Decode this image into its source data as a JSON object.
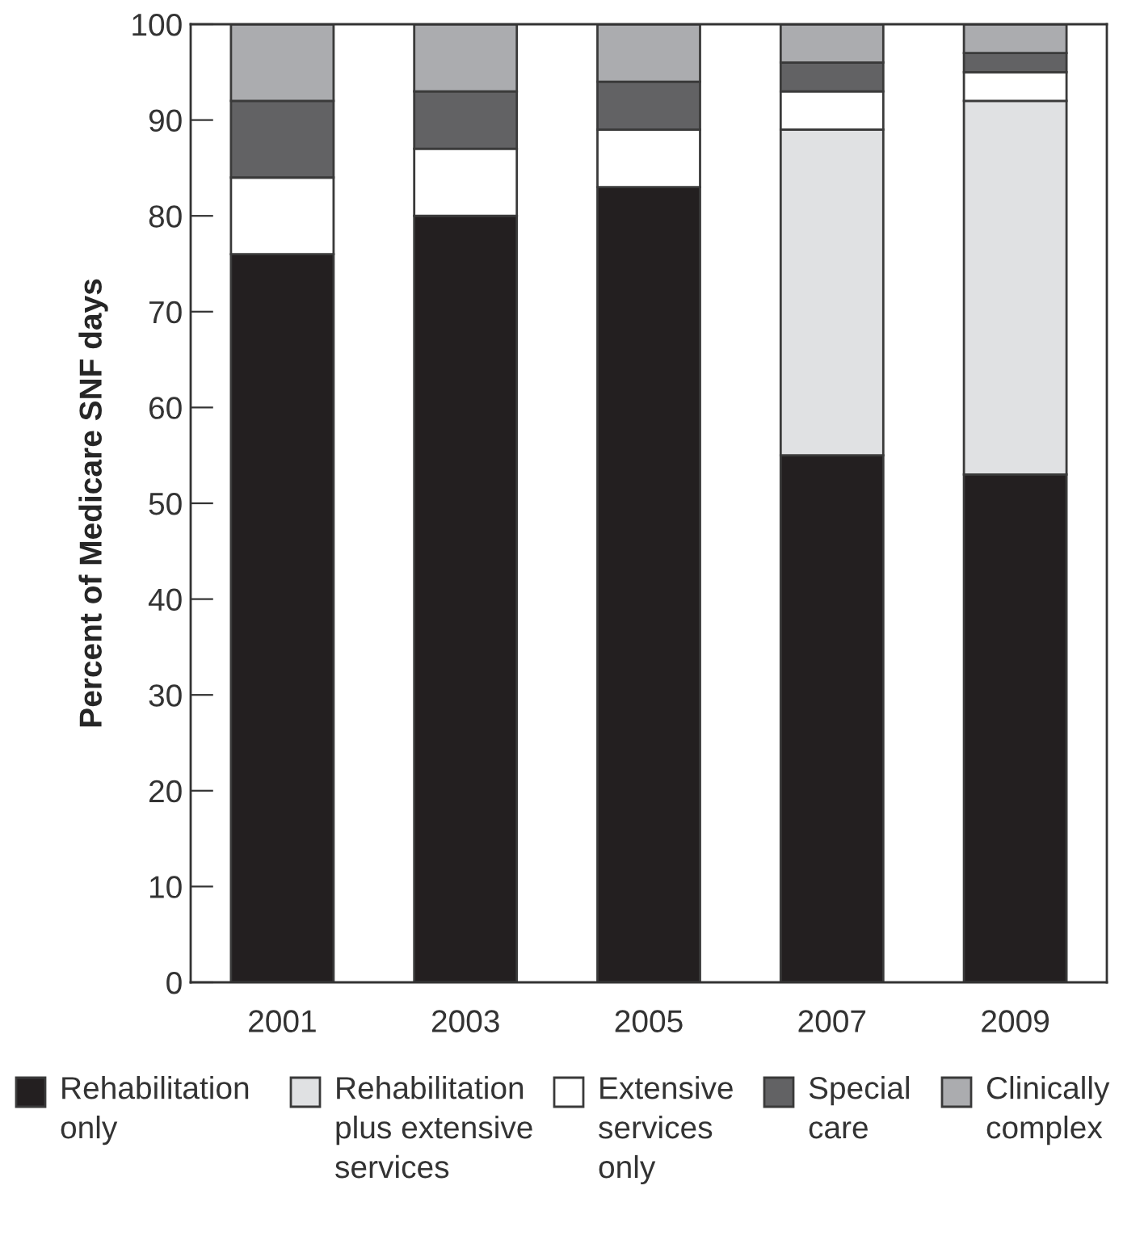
{
  "chart_data": {
    "type": "bar",
    "stacked": true,
    "ylabel": "Percent of Medicare SNF days",
    "categories": [
      "2001",
      "2003",
      "2005",
      "2007",
      "2009"
    ],
    "series": [
      {
        "name": "Rehabilitation only",
        "color": "#231f20",
        "values": [
          76,
          80,
          83,
          55,
          53
        ]
      },
      {
        "name": "Rehabilitation plus extensive services",
        "color": "#e0e1e3",
        "values": [
          0,
          0,
          0,
          34,
          39
        ]
      },
      {
        "name": "Extensive services only",
        "color": "#ffffff",
        "values": [
          8,
          7,
          6,
          4,
          3
        ]
      },
      {
        "name": "Special care",
        "color": "#626264",
        "values": [
          8,
          6,
          5,
          3,
          2
        ]
      },
      {
        "name": "Clinically complex",
        "color": "#abacaf",
        "values": [
          8,
          7,
          6,
          4,
          3
        ]
      }
    ],
    "ylim": [
      0,
      100
    ],
    "yticks": [
      0,
      10,
      20,
      30,
      40,
      50,
      60,
      70,
      80,
      90,
      100
    ],
    "grid": false,
    "legend": "bottom"
  }
}
